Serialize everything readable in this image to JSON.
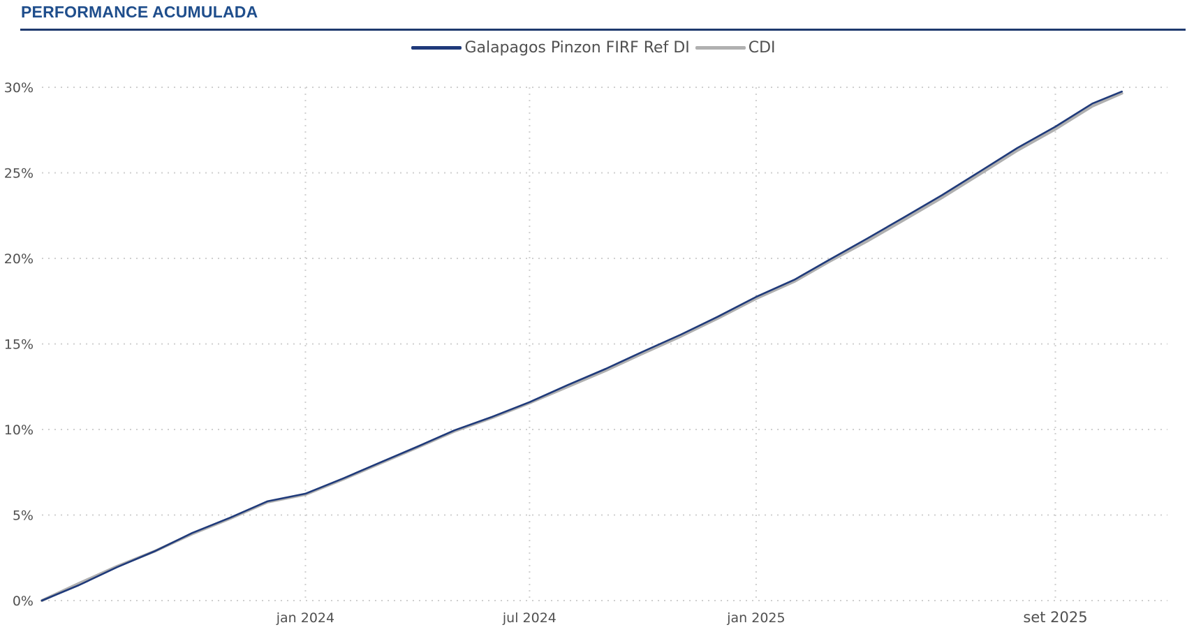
{
  "header": {
    "title": "PERFORMANCE ACUMULADA"
  },
  "colors": {
    "title": "#1f4e8c",
    "fund": "#1f3a7a",
    "cdi": "#b0b0b0",
    "grid": "#cfcfcf"
  },
  "chart_data": {
    "type": "line",
    "title": "",
    "xlabel": "",
    "ylabel": "",
    "x_range": [
      "2023-06-01",
      "2025-12-01"
    ],
    "ylim": [
      0,
      30
    ],
    "y_ticks": [
      0,
      5,
      10,
      15,
      20,
      25,
      30
    ],
    "y_tick_labels": [
      "0%",
      "5%",
      "10%",
      "15%",
      "20%",
      "25%",
      "30%"
    ],
    "x_ticks": [
      "2024-01-01",
      "2024-07-01",
      "2025-01-01",
      "2025-09-01"
    ],
    "x_tick_labels": [
      "jan 2024",
      "jul 2024",
      "jan 2025",
      "set 2025"
    ],
    "grid": true,
    "legend_position": "top-center",
    "series": [
      {
        "name": "Galapagos Pinzon FIRF Ref DI",
        "color": "#1f3a7a",
        "points": [
          [
            "2023-06-01",
            0.0
          ],
          [
            "2023-07-01",
            0.9
          ],
          [
            "2023-08-01",
            1.95
          ],
          [
            "2023-09-01",
            2.9
          ],
          [
            "2023-10-01",
            3.95
          ],
          [
            "2023-11-01",
            4.85
          ],
          [
            "2023-12-01",
            5.8
          ],
          [
            "2024-01-01",
            6.25
          ],
          [
            "2024-02-01",
            7.15
          ],
          [
            "2024-03-01",
            8.05
          ],
          [
            "2024-04-01",
            9.0
          ],
          [
            "2024-05-01",
            9.95
          ],
          [
            "2024-06-01",
            10.75
          ],
          [
            "2024-07-01",
            11.6
          ],
          [
            "2024-08-01",
            12.6
          ],
          [
            "2024-09-01",
            13.55
          ],
          [
            "2024-10-01",
            14.55
          ],
          [
            "2024-11-01",
            15.55
          ],
          [
            "2024-12-01",
            16.6
          ],
          [
            "2025-01-01",
            17.75
          ],
          [
            "2025-02-01",
            18.75
          ],
          [
            "2025-03-01",
            19.9
          ],
          [
            "2025-04-01",
            21.15
          ],
          [
            "2025-05-01",
            22.4
          ],
          [
            "2025-06-01",
            23.7
          ],
          [
            "2025-07-01",
            25.05
          ],
          [
            "2025-08-01",
            26.45
          ],
          [
            "2025-09-01",
            27.7
          ],
          [
            "2025-10-01",
            29.05
          ],
          [
            "2025-10-25",
            29.75
          ]
        ]
      },
      {
        "name": "CDI",
        "color": "#b0b0b0",
        "points": [
          [
            "2023-06-01",
            0.0
          ],
          [
            "2023-07-01",
            1.0
          ],
          [
            "2023-08-01",
            2.0
          ],
          [
            "2023-09-01",
            2.9
          ],
          [
            "2023-10-01",
            3.9
          ],
          [
            "2023-11-01",
            4.8
          ],
          [
            "2023-12-01",
            5.75
          ],
          [
            "2024-01-01",
            6.2
          ],
          [
            "2024-02-01",
            7.1
          ],
          [
            "2024-03-01",
            8.0
          ],
          [
            "2024-04-01",
            8.95
          ],
          [
            "2024-05-01",
            9.9
          ],
          [
            "2024-06-01",
            10.7
          ],
          [
            "2024-07-01",
            11.55
          ],
          [
            "2024-08-01",
            12.5
          ],
          [
            "2024-09-01",
            13.45
          ],
          [
            "2024-10-01",
            14.45
          ],
          [
            "2024-11-01",
            15.45
          ],
          [
            "2024-12-01",
            16.5
          ],
          [
            "2025-01-01",
            17.65
          ],
          [
            "2025-02-01",
            18.65
          ],
          [
            "2025-03-01",
            19.8
          ],
          [
            "2025-04-01",
            21.0
          ],
          [
            "2025-05-01",
            22.25
          ],
          [
            "2025-06-01",
            23.55
          ],
          [
            "2025-07-01",
            24.9
          ],
          [
            "2025-08-01",
            26.3
          ],
          [
            "2025-09-01",
            27.55
          ],
          [
            "2025-10-01",
            28.9
          ],
          [
            "2025-10-25",
            29.65
          ]
        ]
      }
    ]
  }
}
